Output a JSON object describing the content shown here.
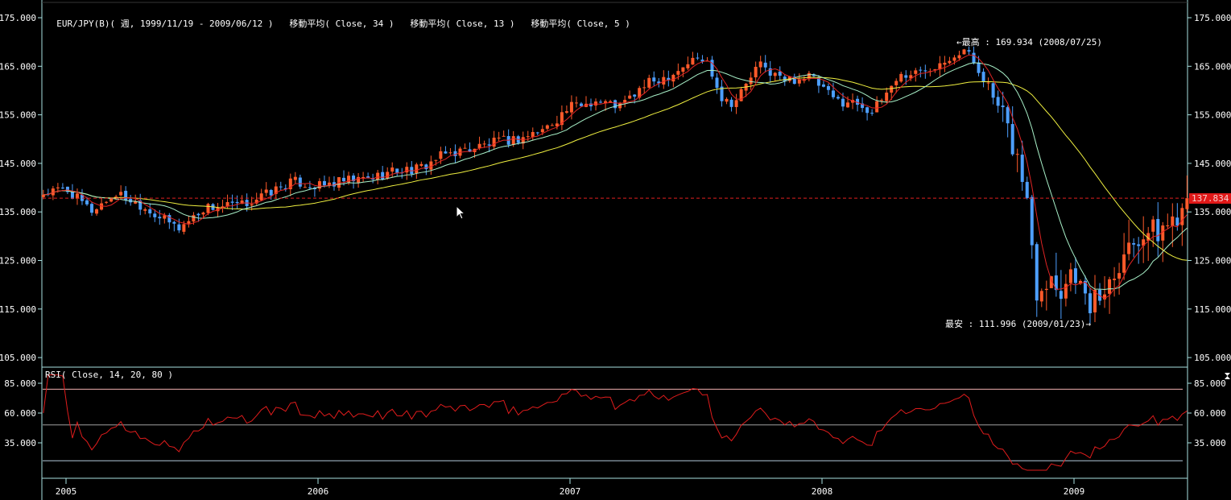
{
  "header": {
    "symbol_title": "EUR/JPY(B)( 週, 1999/11/19 - 2009/06/12 )",
    "ma_labels": [
      "移動平均( Close, 34 )",
      "移動平均( Close, 13 )",
      "移動平均( Close, 5 )"
    ]
  },
  "rsi_title": "RSI( Close, 14, 20, 80 )",
  "annotations": {
    "high": "←最高 : 169.934 (2008/07/25)",
    "low": "最安 : 111.996 (2009/01/23)→"
  },
  "current_price_label": "137.834",
  "colors": {
    "up": "#ff5a2a",
    "down": "#4d9fff",
    "ma5": "#e02424",
    "ma13": "#a8f0c8",
    "ma34": "#f0f040",
    "axis": "#a8e0e0",
    "rsi": "#e01c1c",
    "price_line": "#e02020"
  },
  "chart_data": [
    {
      "type": "candlestick",
      "title": "EUR/JPY(B) weekly",
      "ylim": [
        105,
        175
      ],
      "yticks": [
        "175.000",
        "165.000",
        "155.000",
        "145.000",
        "135.000",
        "125.000",
        "115.000",
        "105.000"
      ],
      "ytick_values": [
        175,
        165,
        155,
        145,
        135,
        125,
        115,
        105
      ],
      "xticks": [
        "2005",
        "2006",
        "2007",
        "2008",
        "2009"
      ],
      "xtick_values": [
        2005,
        2006,
        2007,
        2008,
        2009
      ],
      "x_range": [
        2004.9,
        2009.45
      ],
      "current_price": 137.834,
      "high": {
        "value": 169.934,
        "date": "2008/07/25"
      },
      "low": {
        "value": 111.996,
        "date": "2009/01/23"
      },
      "moving_averages": [
        34,
        13,
        5
      ],
      "close_anchors": [
        [
          2004.91,
          138.8
        ],
        [
          2005.0,
          139.7
        ],
        [
          2005.1,
          135.2
        ],
        [
          2005.2,
          138.8
        ],
        [
          2005.3,
          136.4
        ],
        [
          2005.4,
          133.0
        ],
        [
          2005.45,
          131.7
        ],
        [
          2005.55,
          135.9
        ],
        [
          2005.7,
          136.4
        ],
        [
          2005.8,
          138.8
        ],
        [
          2005.9,
          141.3
        ],
        [
          2006.0,
          140.2
        ],
        [
          2006.1,
          141.3
        ],
        [
          2006.2,
          141.8
        ],
        [
          2006.3,
          143.5
        ],
        [
          2006.4,
          143.8
        ],
        [
          2006.5,
          146.8
        ],
        [
          2006.6,
          148.0
        ],
        [
          2006.7,
          149.3
        ],
        [
          2006.8,
          150.1
        ],
        [
          2006.9,
          152.1
        ],
        [
          2007.0,
          156.6
        ],
        [
          2007.1,
          157.9
        ],
        [
          2007.2,
          156.8
        ],
        [
          2007.3,
          161.2
        ],
        [
          2007.4,
          163.4
        ],
        [
          2007.5,
          166.7
        ],
        [
          2007.55,
          165.7
        ],
        [
          2007.6,
          158.7
        ],
        [
          2007.65,
          157.4
        ],
        [
          2007.75,
          165.4
        ],
        [
          2007.85,
          162.0
        ],
        [
          2007.95,
          163.0
        ],
        [
          2008.05,
          158.0
        ],
        [
          2008.15,
          157.4
        ],
        [
          2008.2,
          155.4
        ],
        [
          2008.3,
          162.9
        ],
        [
          2008.4,
          164.0
        ],
        [
          2008.5,
          167.0
        ],
        [
          2008.57,
          168.4
        ],
        [
          2008.65,
          162.0
        ],
        [
          2008.72,
          153.8
        ],
        [
          2008.78,
          145.5
        ],
        [
          2008.82,
          135.5
        ],
        [
          2008.85,
          118.9
        ],
        [
          2008.9,
          122.2
        ],
        [
          2008.95,
          118.9
        ],
        [
          2009.0,
          124.0
        ],
        [
          2009.05,
          115.6
        ],
        [
          2009.1,
          117.3
        ],
        [
          2009.2,
          127.2
        ],
        [
          2009.28,
          131.4
        ],
        [
          2009.33,
          130.6
        ],
        [
          2009.4,
          133.9
        ],
        [
          2009.45,
          137.8
        ]
      ]
    },
    {
      "type": "line",
      "title": "RSI( Close, 14, 20, 80 )",
      "ylim": [
        10,
        95
      ],
      "yticks": [
        "85.000",
        "60.000",
        "35.000"
      ],
      "ytick_values": [
        85,
        60,
        35
      ],
      "levels": [
        80,
        50,
        20
      ]
    }
  ]
}
